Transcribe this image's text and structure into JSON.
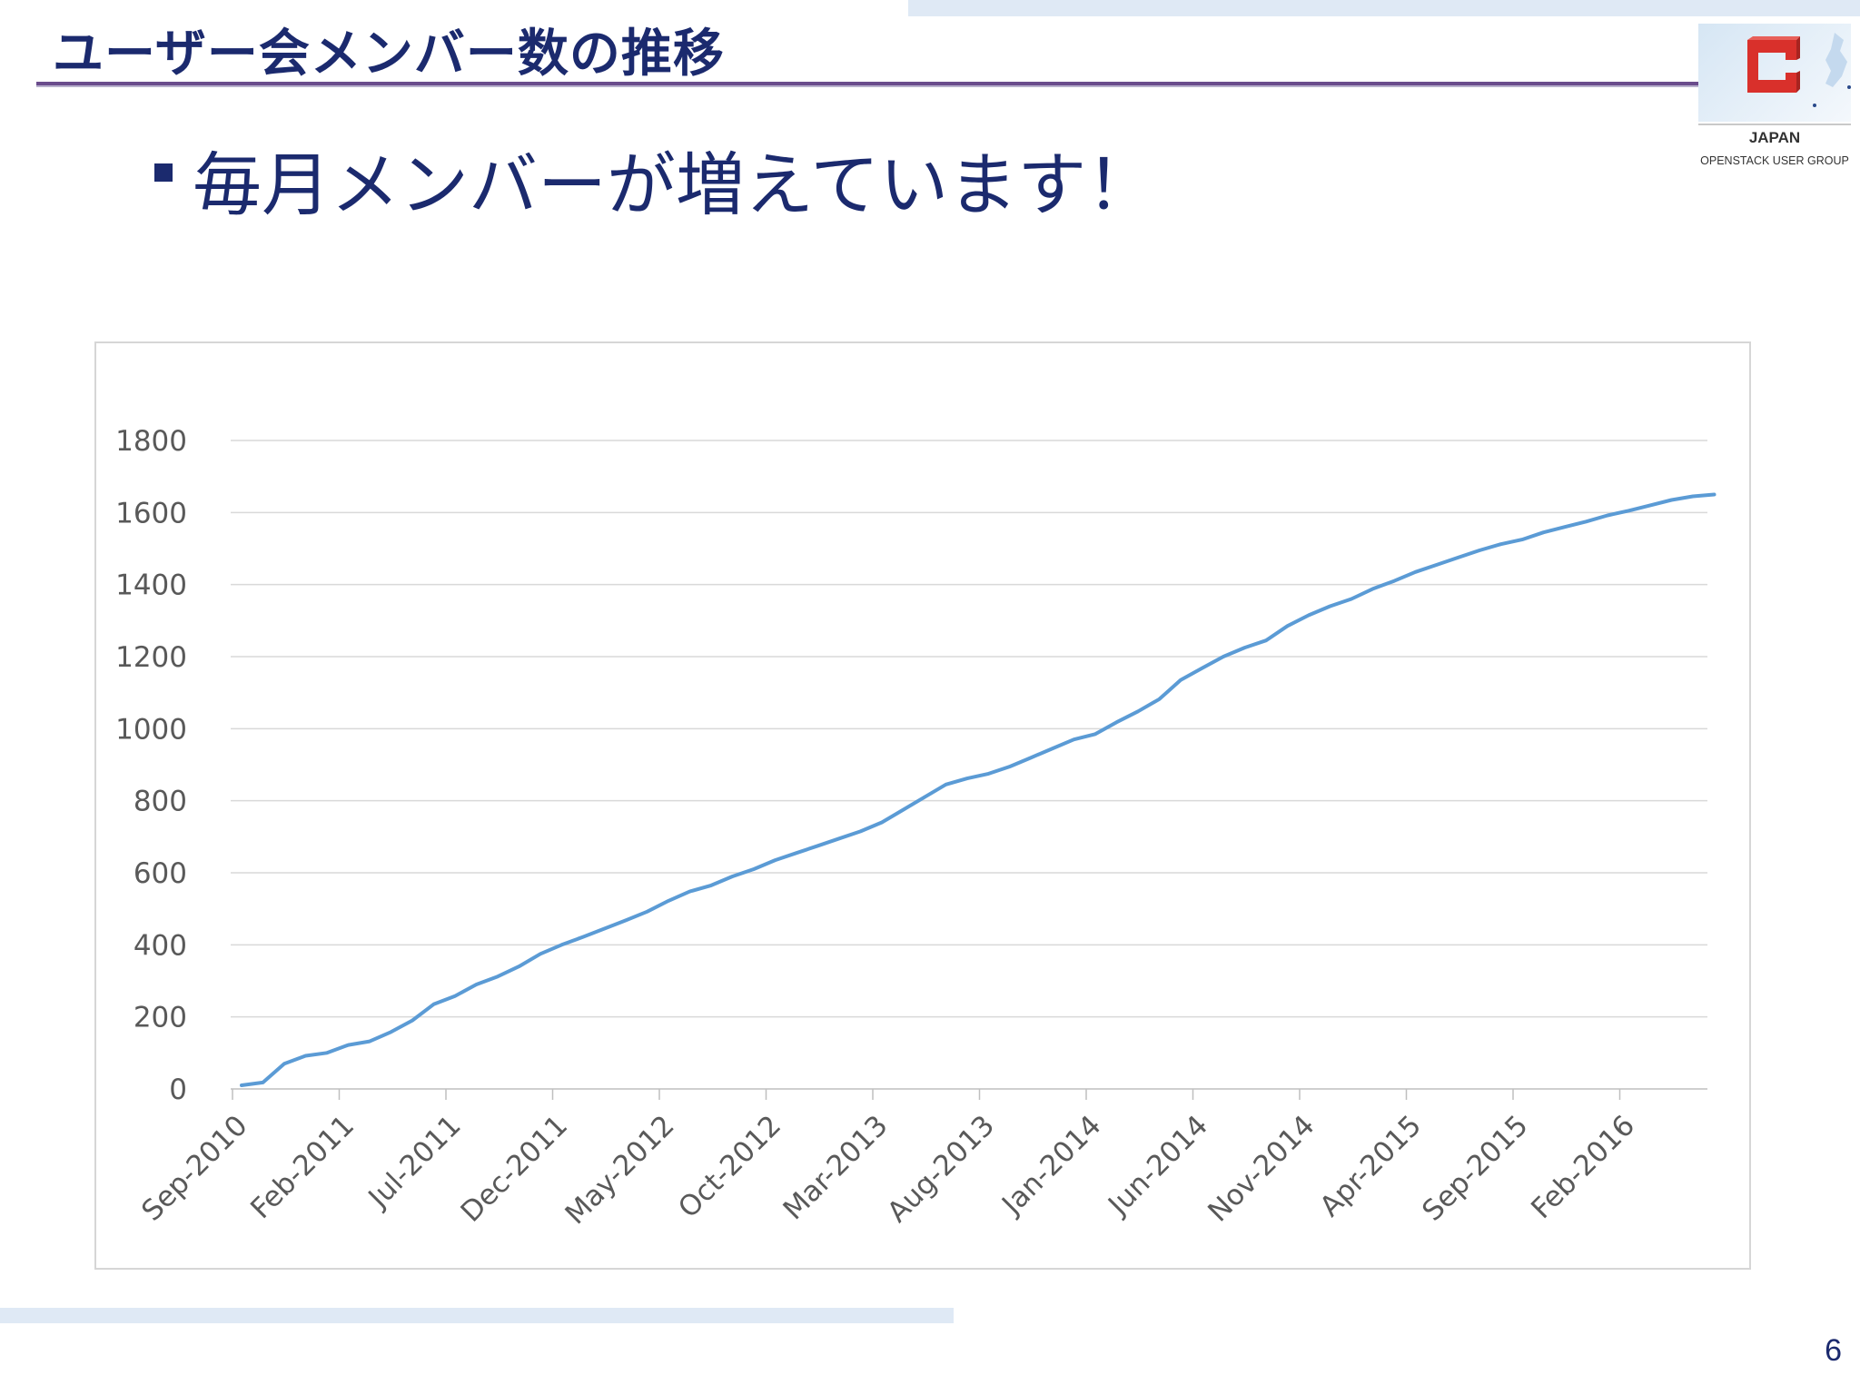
{
  "slide": {
    "title": "ユーザー会メンバー数の推移",
    "bullet": "毎月メンバーが増えています！",
    "page_number": "6"
  },
  "logo": {
    "icon": "openstack-logo-icon",
    "country": "JAPAN",
    "group": "OPENSTACK USER GROUP",
    "colors": {
      "mark": "#d9302b",
      "background": "#dfe9f5"
    }
  },
  "colors": {
    "title": "#1b2a6e",
    "rule": "#6a4c8c",
    "band": "#dfe9f5",
    "line": "#5b9bd5",
    "grid": "#d9d9d9",
    "axis_text": "#595959"
  },
  "chart_data": {
    "type": "line",
    "title": "",
    "xlabel": "",
    "ylabel": "",
    "ylim": [
      0,
      1800
    ],
    "yticks": [
      0,
      200,
      400,
      600,
      800,
      1000,
      1200,
      1400,
      1600,
      1800
    ],
    "grid": true,
    "legend": "none",
    "x_tick_labels": [
      "Sep-2010",
      "Feb-2011",
      "Jul-2011",
      "Dec-2011",
      "May-2012",
      "Oct-2012",
      "Mar-2013",
      "Aug-2013",
      "Jan-2014",
      "Jun-2014",
      "Nov-2014",
      "Apr-2015",
      "Sep-2015",
      "Feb-2016"
    ],
    "x": [
      "Sep-2010",
      "Oct-2010",
      "Nov-2010",
      "Dec-2010",
      "Jan-2011",
      "Feb-2011",
      "Mar-2011",
      "Apr-2011",
      "May-2011",
      "Jun-2011",
      "Jul-2011",
      "Aug-2011",
      "Sep-2011",
      "Oct-2011",
      "Nov-2011",
      "Dec-2011",
      "Jan-2012",
      "Feb-2012",
      "Mar-2012",
      "Apr-2012",
      "May-2012",
      "Jun-2012",
      "Jul-2012",
      "Aug-2012",
      "Sep-2012",
      "Oct-2012",
      "Nov-2012",
      "Dec-2012",
      "Jan-2013",
      "Feb-2013",
      "Mar-2013",
      "Apr-2013",
      "May-2013",
      "Jun-2013",
      "Jul-2013",
      "Aug-2013",
      "Sep-2013",
      "Oct-2013",
      "Nov-2013",
      "Dec-2013",
      "Jan-2014",
      "Feb-2014",
      "Mar-2014",
      "Apr-2014",
      "May-2014",
      "Jun-2014",
      "Jul-2014",
      "Aug-2014",
      "Sep-2014",
      "Oct-2014",
      "Nov-2014",
      "Dec-2014",
      "Jan-2015",
      "Feb-2015",
      "Mar-2015",
      "Apr-2015",
      "May-2015",
      "Jun-2015",
      "Jul-2015",
      "Aug-2015",
      "Sep-2015",
      "Oct-2015",
      "Nov-2015",
      "Dec-2015",
      "Jan-2016",
      "Feb-2016",
      "Mar-2016",
      "Apr-2016",
      "May-2016",
      "Jun-2016"
    ],
    "series": [
      {
        "values": [
          10,
          18,
          70,
          92,
          100,
          122,
          132,
          158,
          190,
          235,
          258,
          290,
          312,
          340,
          375,
          400,
          422,
          445,
          468,
          492,
          522,
          548,
          565,
          590,
          610,
          635,
          655,
          675,
          695,
          715,
          740,
          775,
          810,
          845,
          862,
          875,
          895,
          920,
          945,
          970,
          985,
          1018,
          1048,
          1082,
          1135,
          1168,
          1200,
          1225,
          1245,
          1285,
          1315,
          1340,
          1360,
          1388,
          1410,
          1435,
          1455,
          1475,
          1495,
          1512,
          1525,
          1545,
          1560,
          1575,
          1592,
          1605,
          1620,
          1635,
          1645,
          1650
        ]
      }
    ]
  }
}
